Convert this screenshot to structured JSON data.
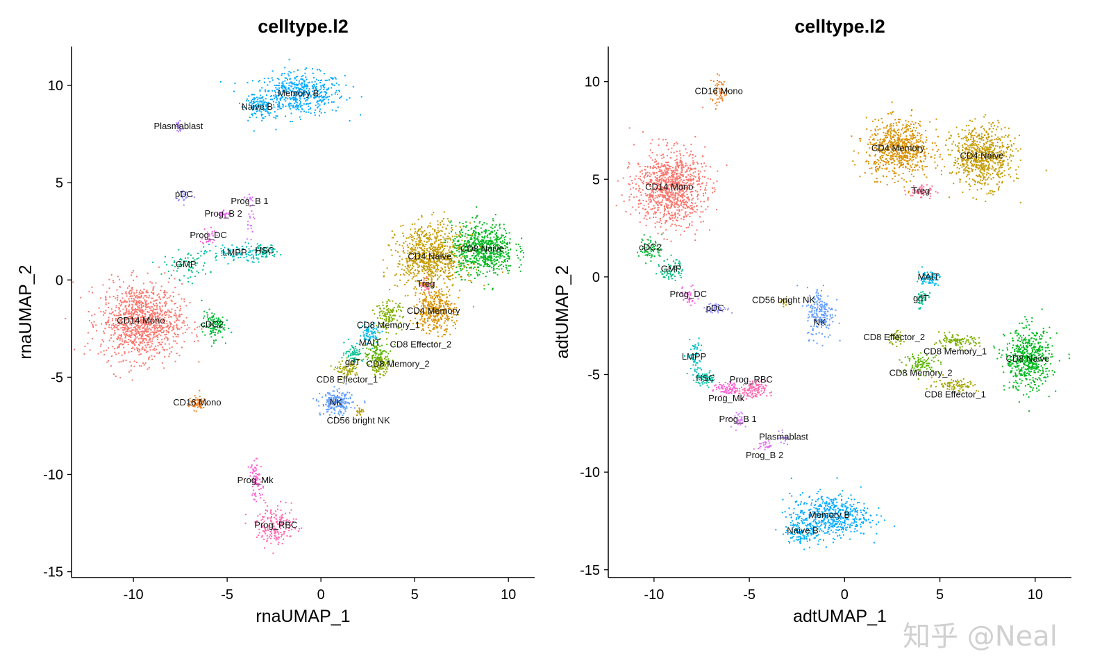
{
  "colors": {
    "CD14 Mono": "#F8766D",
    "CD16 Mono": "#E9842C",
    "cDC2": "#00BA38",
    "GMP": "#00BF7D",
    "HSC": "#00C1A3",
    "LMPP": "#00BFC4",
    "MAIT": "#00B8E7",
    "Memory B": "#00A9FF",
    "Naive B": "#00B0F6",
    "NK": "#619CFF",
    "pDC": "#9590FF",
    "Plasmablast": "#B385FF",
    "Prog_B 1": "#D874FD",
    "Prog_B 2": "#E76BF3",
    "Prog_DC": "#F564E3",
    "Prog_Mk": "#FD61D1",
    "Prog_RBC": "#FF65AC",
    "Treg": "#FF6C91",
    "CD4 Memory": "#D89000",
    "CD4 Naive": "#C49A00",
    "CD56 bright NK": "#B79F00",
    "CD8 Effector_1": "#A3A500",
    "CD8 Effector_2": "#8AAB00",
    "CD8 Memory_1": "#7CAE00",
    "CD8 Memory_2": "#5BB300",
    "CD8 Naive": "#00B81F",
    "gdT": "#00C08B"
  },
  "watermark": "知乎 @Neal",
  "chart_data": [
    {
      "type": "scatter",
      "title": "celltype.l2",
      "xlabel": "rnaUMAP_1",
      "ylabel": "rnaUMAP_2",
      "xlim": [
        -13.3,
        11.4
      ],
      "ylim": [
        -15.3,
        12.0
      ],
      "xticks": [
        -10,
        -5,
        0,
        5,
        10
      ],
      "yticks": [
        -15,
        -10,
        -5,
        0,
        5,
        10
      ],
      "grid": false,
      "legend": "none",
      "clusters": [
        {
          "label": "Memory B",
          "center": [
            -1.2,
            9.6
          ],
          "spread": [
            2.0,
            0.9
          ],
          "n": 520
        },
        {
          "label": "Naive B",
          "center": [
            -3.4,
            8.9
          ],
          "spread": [
            0.6,
            0.5
          ],
          "n": 90
        },
        {
          "label": "Plasmablast",
          "center": [
            -7.6,
            7.9
          ],
          "spread": [
            0.2,
            0.4
          ],
          "n": 25
        },
        {
          "label": "pDC",
          "center": [
            -7.3,
            4.4
          ],
          "spread": [
            0.4,
            0.3
          ],
          "n": 25
        },
        {
          "label": "Prog_B 2",
          "center": [
            -5.2,
            3.4
          ],
          "spread": [
            0.3,
            0.2
          ],
          "n": 25
        },
        {
          "label": "Prog_DC",
          "center": [
            -6.0,
            2.3
          ],
          "spread": [
            0.3,
            0.4
          ],
          "n": 30
        },
        {
          "label": "Prog_B 1",
          "center": [
            -3.8,
            3.5
          ],
          "spread": [
            0.2,
            1.2
          ],
          "n": 30
        },
        {
          "label": "LMPP",
          "center": [
            -4.6,
            1.4
          ],
          "spread": [
            1.4,
            0.4
          ],
          "n": 110
        },
        {
          "label": "HSC",
          "center": [
            -3.0,
            1.5
          ],
          "spread": [
            0.6,
            0.3
          ],
          "n": 60
        },
        {
          "label": "GMP",
          "center": [
            -7.2,
            0.8
          ],
          "spread": [
            1.0,
            0.6
          ],
          "n": 80
        },
        {
          "label": "CD14 Mono",
          "center": [
            -9.6,
            -2.1
          ],
          "spread": [
            1.8,
            1.6
          ],
          "n": 1100
        },
        {
          "label": "cDC2",
          "center": [
            -5.8,
            -2.3
          ],
          "spread": [
            0.5,
            0.6
          ],
          "n": 120
        },
        {
          "label": "CD16 Mono",
          "center": [
            -6.6,
            -6.3
          ],
          "spread": [
            0.4,
            0.3
          ],
          "n": 70
        },
        {
          "label": "CD8 Naive",
          "center": [
            8.6,
            1.6
          ],
          "spread": [
            1.4,
            1.1
          ],
          "n": 700
        },
        {
          "label": "CD4 Naive",
          "center": [
            5.8,
            1.2
          ],
          "spread": [
            1.5,
            1.4
          ],
          "n": 800
        },
        {
          "label": "Treg",
          "center": [
            5.6,
            -0.2
          ],
          "spread": [
            0.3,
            0.3
          ],
          "n": 30
        },
        {
          "label": "CD4 Memory",
          "center": [
            6.0,
            -1.6
          ],
          "spread": [
            0.9,
            0.9
          ],
          "n": 350
        },
        {
          "label": "CD8 Memory_1",
          "center": [
            3.6,
            -1.8
          ],
          "spread": [
            0.6,
            0.6
          ],
          "n": 120
        },
        {
          "label": "MAIT",
          "center": [
            2.6,
            -2.7
          ],
          "spread": [
            0.5,
            0.5
          ],
          "n": 80
        },
        {
          "label": "gdT",
          "center": [
            1.7,
            -3.7
          ],
          "spread": [
            0.4,
            0.4
          ],
          "n": 60
        },
        {
          "label": "CD8 Memory_2",
          "center": [
            3.0,
            -3.8
          ],
          "spread": [
            0.6,
            0.5
          ],
          "n": 110
        },
        {
          "label": "CD8 Effector_1",
          "center": [
            1.4,
            -4.6
          ],
          "spread": [
            0.5,
            0.4
          ],
          "n": 80
        },
        {
          "label": "CD8 Effector_2",
          "center": [
            3.1,
            -4.4
          ],
          "spread": [
            0.4,
            0.4
          ],
          "n": 90
        },
        {
          "label": "NK",
          "center": [
            0.8,
            -6.3
          ],
          "spread": [
            0.7,
            0.5
          ],
          "n": 220
        },
        {
          "label": "CD56 bright NK",
          "center": [
            2.0,
            -6.7
          ],
          "spread": [
            0.2,
            0.2
          ],
          "n": 20
        },
        {
          "label": "Prog_Mk",
          "center": [
            -3.5,
            -10.3
          ],
          "spread": [
            0.3,
            0.8
          ],
          "n": 80
        },
        {
          "label": "Prog_RBC",
          "center": [
            -2.4,
            -12.6
          ],
          "spread": [
            0.9,
            0.8
          ],
          "n": 180
        }
      ]
    },
    {
      "type": "scatter",
      "title": "celltype.l2",
      "xlabel": "adtUMAP_1",
      "ylabel": "adtUMAP_2",
      "xlim": [
        -12.4,
        11.9
      ],
      "ylim": [
        -15.4,
        11.8
      ],
      "xticks": [
        -10,
        -5,
        0,
        5,
        10
      ],
      "yticks": [
        -15,
        -10,
        -5,
        0,
        5,
        10
      ],
      "grid": false,
      "legend": "none",
      "clusters": [
        {
          "label": "CD16 Mono",
          "center": [
            -6.6,
            9.5
          ],
          "spread": [
            0.4,
            0.6
          ],
          "n": 60
        },
        {
          "label": "CD14 Mono",
          "center": [
            -9.2,
            4.6
          ],
          "spread": [
            1.5,
            1.6
          ],
          "n": 1000
        },
        {
          "label": "cDC2",
          "center": [
            -10.2,
            1.5
          ],
          "spread": [
            0.5,
            0.5
          ],
          "n": 70
        },
        {
          "label": "GMP",
          "center": [
            -9.1,
            0.4
          ],
          "spread": [
            0.5,
            0.5
          ],
          "n": 70
        },
        {
          "label": "Prog_DC",
          "center": [
            -8.2,
            -0.9
          ],
          "spread": [
            0.4,
            0.4
          ],
          "n": 40
        },
        {
          "label": "pDC",
          "center": [
            -6.8,
            -1.6
          ],
          "spread": [
            0.6,
            0.2
          ],
          "n": 50
        },
        {
          "label": "LMPP",
          "center": [
            -7.9,
            -4.1
          ],
          "spread": [
            0.3,
            0.8
          ],
          "n": 60
        },
        {
          "label": "HSC",
          "center": [
            -7.3,
            -5.2
          ],
          "spread": [
            0.4,
            0.3
          ],
          "n": 60
        },
        {
          "label": "Prog_Mk",
          "center": [
            -6.2,
            -5.7
          ],
          "spread": [
            0.6,
            0.3
          ],
          "n": 80
        },
        {
          "label": "Prog_RBC",
          "center": [
            -4.9,
            -5.8
          ],
          "spread": [
            0.6,
            0.4
          ],
          "n": 120
        },
        {
          "label": "Prog_B 1",
          "center": [
            -5.6,
            -7.3
          ],
          "spread": [
            0.4,
            0.4
          ],
          "n": 30
        },
        {
          "label": "Plasmablast",
          "center": [
            -3.2,
            -8.2
          ],
          "spread": [
            0.2,
            0.3
          ],
          "n": 20
        },
        {
          "label": "Prog_B 2",
          "center": [
            -4.2,
            -8.6
          ],
          "spread": [
            0.3,
            0.2
          ],
          "n": 25
        },
        {
          "label": "CD56 bright NK",
          "center": [
            -3.2,
            -1.2
          ],
          "spread": [
            0.2,
            0.2
          ],
          "n": 15
        },
        {
          "label": "NK",
          "center": [
            -1.3,
            -1.8
          ],
          "spread": [
            0.6,
            1.1
          ],
          "n": 200
        },
        {
          "label": "Memory B",
          "center": [
            -0.8,
            -12.2
          ],
          "spread": [
            1.7,
            0.9
          ],
          "n": 500
        },
        {
          "label": "Naive B",
          "center": [
            -2.2,
            -13.0
          ],
          "spread": [
            0.8,
            0.5
          ],
          "n": 120
        },
        {
          "label": "CD4 Memory",
          "center": [
            2.8,
            6.6
          ],
          "spread": [
            1.4,
            1.2
          ],
          "n": 700
        },
        {
          "label": "CD4 Naive",
          "center": [
            7.2,
            6.2
          ],
          "spread": [
            1.3,
            1.3
          ],
          "n": 700
        },
        {
          "label": "Treg",
          "center": [
            4.0,
            4.4
          ],
          "spread": [
            0.6,
            0.3
          ],
          "n": 60
        },
        {
          "label": "MAIT",
          "center": [
            4.4,
            0.0
          ],
          "spread": [
            0.5,
            0.3
          ],
          "n": 80
        },
        {
          "label": "gdT",
          "center": [
            4.0,
            -1.1
          ],
          "spread": [
            0.3,
            0.4
          ],
          "n": 40
        },
        {
          "label": "CD8 Effector_2",
          "center": [
            2.6,
            -3.1
          ],
          "spread": [
            0.4,
            0.3
          ],
          "n": 40
        },
        {
          "label": "CD8 Memory_1",
          "center": [
            5.8,
            -3.3
          ],
          "spread": [
            1.0,
            0.3
          ],
          "n": 110
        },
        {
          "label": "CD8 Memory_2",
          "center": [
            4.0,
            -4.4
          ],
          "spread": [
            0.8,
            0.4
          ],
          "n": 100
        },
        {
          "label": "CD8 Effector_1",
          "center": [
            5.8,
            -5.5
          ],
          "spread": [
            1.0,
            0.3
          ],
          "n": 90
        },
        {
          "label": "CD8 Naive",
          "center": [
            9.6,
            -4.2
          ],
          "spread": [
            1.0,
            1.3
          ],
          "n": 550
        }
      ]
    }
  ]
}
